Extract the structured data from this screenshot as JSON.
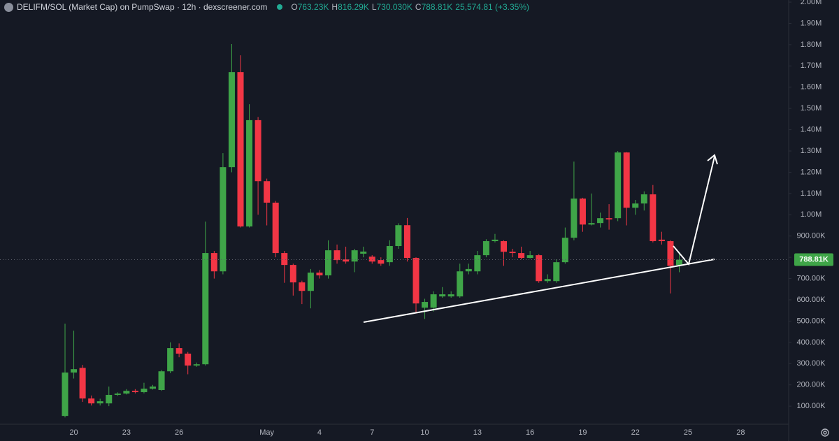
{
  "chart_data": {
    "type": "candlestick",
    "title": "DELIFM/SOL (Market Cap) on PumpSwap · 12h · dexscreener.com",
    "ohlc_legend": [
      {
        "key": "O",
        "text": "763.23K"
      },
      {
        "key": "H",
        "text": "816.29K"
      },
      {
        "key": "L",
        "text": "730.030K"
      },
      {
        "key": "C",
        "text": "788.81K"
      }
    ],
    "change_text": "25,574.81 (+3.35%)",
    "up_color": "#3fa548",
    "down_color": "#f23645",
    "categories": [
      null,
      "20",
      null,
      null,
      null,
      null,
      null,
      "23",
      null,
      null,
      null,
      null,
      null,
      "26",
      null,
      null,
      null,
      null,
      null,
      null,
      null,
      null,
      null,
      "May",
      null,
      null,
      null,
      null,
      null,
      "4",
      null,
      null,
      null,
      null,
      null,
      "7",
      null,
      null,
      null,
      null,
      null,
      "10",
      null,
      null,
      null,
      null,
      null,
      "13",
      null,
      null,
      null,
      null,
      null,
      "16",
      null,
      null,
      null,
      null,
      null,
      "19",
      null,
      null,
      null,
      null,
      null,
      "22",
      null,
      null,
      null,
      null,
      null,
      "25",
      null,
      null,
      null,
      null,
      null,
      "28",
      null,
      null,
      null,
      null,
      null
    ],
    "open": [
      54000,
      258000,
      280000,
      136000,
      113000,
      113000,
      153000,
      159000,
      172000,
      166000,
      182000,
      176000,
      264000,
      373000,
      347000,
      291000,
      297000,
      820000,
      734000,
      1224000,
      1671000,
      945000,
      1445000,
      1158000,
      1057000,
      820000,
      764000,
      682000,
      642000,
      728000,
      715000,
      833000,
      790000,
      780000,
      817000,
      803000,
      787000,
      777000,
      853000,
      951000,
      797000,
      563000,
      563000,
      616000,
      616000,
      616000,
      734000,
      734000,
      810000,
      876000,
      876000,
      826000,
      820000,
      797000,
      810000,
      688000,
      688000,
      777000,
      892000,
      1076000,
      954000,
      961000,
      984000,
      984000,
      1293000,
      1033000,
      1053000,
      1096000,
      883000,
      876000,
      763230,
      null,
      null,
      null,
      null,
      null,
      null,
      null,
      null,
      null,
      null,
      null,
      null
    ],
    "high": [
      488000,
      455000,
      294000,
      150000,
      135000,
      192000,
      165000,
      180000,
      180000,
      210000,
      200000,
      270000,
      400000,
      395000,
      355000,
      305000,
      968000,
      830000,
      1290000,
      1803000,
      1750000,
      1520000,
      1460000,
      1170000,
      1065000,
      830000,
      770000,
      690000,
      745000,
      740000,
      880000,
      860000,
      850000,
      840000,
      850000,
      810000,
      800000,
      880000,
      960000,
      985000,
      800000,
      605000,
      640000,
      660000,
      640000,
      770000,
      770000,
      830000,
      885000,
      910000,
      880000,
      840000,
      850000,
      830000,
      815000,
      720000,
      790000,
      940000,
      1250000,
      1080000,
      1100000,
      1010000,
      1050000,
      1300000,
      1295000,
      1070000,
      1110000,
      1140000,
      920000,
      880000,
      816290,
      null,
      null,
      null,
      null,
      null,
      null,
      null,
      null,
      null,
      null,
      null,
      null
    ],
    "low": [
      47000,
      230000,
      120000,
      103000,
      103000,
      100000,
      148000,
      155000,
      160000,
      160000,
      178000,
      172000,
      255000,
      330000,
      250000,
      285000,
      291000,
      700000,
      720000,
      1200000,
      940000,
      940000,
      1000000,
      950000,
      800000,
      680000,
      620000,
      580000,
      560000,
      700000,
      700000,
      770000,
      770000,
      730000,
      800000,
      770000,
      760000,
      760000,
      840000,
      780000,
      540000,
      510000,
      545000,
      610000,
      610000,
      610000,
      720000,
      720000,
      800000,
      870000,
      760000,
      800000,
      790000,
      795000,
      680000,
      680000,
      680000,
      770000,
      880000,
      920000,
      950000,
      940000,
      930000,
      970000,
      950000,
      1000000,
      1020000,
      870000,
      860000,
      630000,
      730030,
      null,
      null,
      null,
      null,
      null,
      null,
      null,
      null,
      null,
      null,
      null,
      null
    ],
    "close": [
      258000,
      274000,
      136000,
      113000,
      123000,
      153000,
      159000,
      172000,
      166000,
      182000,
      192000,
      264000,
      373000,
      347000,
      291000,
      297000,
      820000,
      734000,
      1224000,
      1671000,
      945000,
      1445000,
      1158000,
      1057000,
      820000,
      764000,
      682000,
      642000,
      728000,
      715000,
      833000,
      787000,
      780000,
      833000,
      827000,
      780000,
      770000,
      853000,
      951000,
      797000,
      583000,
      590000,
      626000,
      626000,
      626000,
      734000,
      745000,
      810000,
      876000,
      883000,
      826000,
      820000,
      797000,
      810000,
      688000,
      698000,
      777000,
      892000,
      1076000,
      954000,
      961000,
      984000,
      978000,
      1293000,
      1033000,
      1053000,
      1096000,
      876000,
      876000,
      760000,
      788810,
      null,
      null,
      null,
      null,
      null,
      null,
      null,
      null,
      null,
      null,
      null,
      null
    ],
    "ylim": [
      15000,
      2010000
    ],
    "yticks": [
      {
        "value": 100000,
        "label": "100.00K"
      },
      {
        "value": 200000,
        "label": "200.00K"
      },
      {
        "value": 300000,
        "label": "300.00K"
      },
      {
        "value": 400000,
        "label": "400.00K"
      },
      {
        "value": 500000,
        "label": "500.00K"
      },
      {
        "value": 600000,
        "label": "600.00K"
      },
      {
        "value": 700000,
        "label": "700.00K"
      },
      {
        "value": 800000,
        "label": "800.00K"
      },
      {
        "value": 900000,
        "label": "900.00K"
      },
      {
        "value": 1000000,
        "label": "1.00M"
      },
      {
        "value": 1100000,
        "label": "1.10M"
      },
      {
        "value": 1200000,
        "label": "1.20M"
      },
      {
        "value": 1300000,
        "label": "1.30M"
      },
      {
        "value": 1400000,
        "label": "1.40M"
      },
      {
        "value": 1500000,
        "label": "1.50M"
      },
      {
        "value": 1600000,
        "label": "1.60M"
      },
      {
        "value": 1700000,
        "label": "1.70M"
      },
      {
        "value": 1800000,
        "label": "1.80M"
      },
      {
        "value": 1900000,
        "label": "1.90M"
      },
      {
        "value": 2000000,
        "label": "2.00M"
      }
    ],
    "last_price": {
      "value": 788810,
      "label": "788.81K"
    },
    "grid": false
  }
}
